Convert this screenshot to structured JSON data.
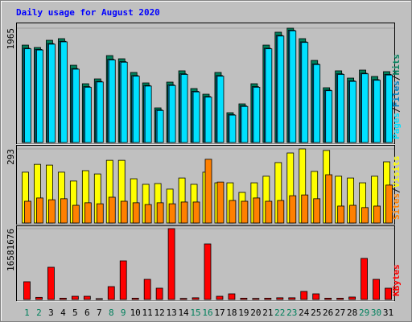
{
  "chart_data": [
    {
      "type": "bar",
      "title": "Daily usage for August 2020",
      "series": [
        {
          "name": "Hits",
          "color": "#00805c",
          "values": [
            1674,
            1633,
            1757,
            1785,
            1328,
            1010,
            1093,
            1494,
            1439,
            1204,
            1024,
            595,
            1038,
            1232,
            927,
            830,
            1204,
            512,
            664,
            1010,
            1674,
            1896,
            1965,
            1785,
            1411,
            941,
            1232,
            1107,
            1245,
            1135,
            1218
          ]
        },
        {
          "name": "Files",
          "color": "#0080c0",
          "values": [
            1620,
            1600,
            1700,
            1740,
            1270,
            960,
            1050,
            1430,
            1390,
            1150,
            980,
            560,
            990,
            1180,
            880,
            790,
            1150,
            480,
            630,
            960,
            1620,
            1840,
            1930,
            1730,
            1350,
            900,
            1180,
            1060,
            1190,
            1080,
            1170
          ]
        },
        {
          "name": "Pages",
          "color": "#00e0ff",
          "values": [
            1610,
            1590,
            1690,
            1730,
            1260,
            950,
            1040,
            1420,
            1380,
            1140,
            970,
            550,
            980,
            1170,
            870,
            780,
            1140,
            470,
            620,
            950,
            1610,
            1830,
            1920,
            1720,
            1340,
            890,
            1170,
            1050,
            1180,
            1070,
            1160
          ]
        }
      ],
      "legend_separator": "/",
      "ylim": [
        0,
        1965
      ],
      "yticks": [
        1965
      ]
    },
    {
      "type": "bar",
      "series": [
        {
          "name": "Visits",
          "color": "#ffff00",
          "values": [
            201,
            232,
            229,
            201,
            166,
            207,
            194,
            248,
            248,
            175,
            153,
            156,
            134,
            178,
            153,
            201,
            159,
            159,
            121,
            159,
            185,
            239,
            277,
            293,
            204,
            287,
            185,
            178,
            159,
            185,
            242
          ]
        },
        {
          "name": "Sites",
          "color": "#ff8000",
          "values": [
            86,
            99,
            92,
            96,
            70,
            80,
            76,
            102,
            86,
            80,
            73,
            80,
            76,
            83,
            83,
            252,
            162,
            89,
            86,
            99,
            86,
            89,
            108,
            111,
            96,
            191,
            67,
            70,
            61,
            67,
            150
          ]
        }
      ],
      "legend_separator": "/",
      "ylim": [
        0,
        293
      ],
      "yticks": [
        293
      ]
    },
    {
      "type": "bar",
      "series": [
        {
          "name": "KBytes",
          "color": "#ff0000",
          "values": [
            4150000,
            500000,
            7540000,
            300000,
            750000,
            750000,
            200000,
            3010000,
            9040000,
            300000,
            4710000,
            2640000,
            16581676,
            250000,
            400000,
            13000000,
            750000,
            1320000,
            300000,
            250000,
            300000,
            400000,
            400000,
            1880000,
            1320000,
            300000,
            300000,
            570000,
            9610000,
            4710000,
            2640000
          ]
        }
      ],
      "ylim": [
        0,
        16581676
      ],
      "yticks": [
        16581676
      ],
      "categories": [
        "1",
        "2",
        "3",
        "4",
        "5",
        "6",
        "7",
        "8",
        "9",
        "10",
        "11",
        "12",
        "13",
        "14",
        "15",
        "16",
        "17",
        "18",
        "19",
        "20",
        "21",
        "22",
        "23",
        "24",
        "25",
        "26",
        "27",
        "28",
        "29",
        "30",
        "31"
      ],
      "category_colors": [
        "#00805c",
        "#00805c",
        "#000000",
        "#000000",
        "#000000",
        "#000000",
        "#000000",
        "#00805c",
        "#00805c",
        "#000000",
        "#000000",
        "#000000",
        "#000000",
        "#000000",
        "#00805c",
        "#00805c",
        "#000000",
        "#000000",
        "#000000",
        "#000000",
        "#000000",
        "#00805c",
        "#00805c",
        "#000000",
        "#000000",
        "#000000",
        "#000000",
        "#000000",
        "#00805c",
        "#00805c",
        "#000000"
      ]
    }
  ]
}
